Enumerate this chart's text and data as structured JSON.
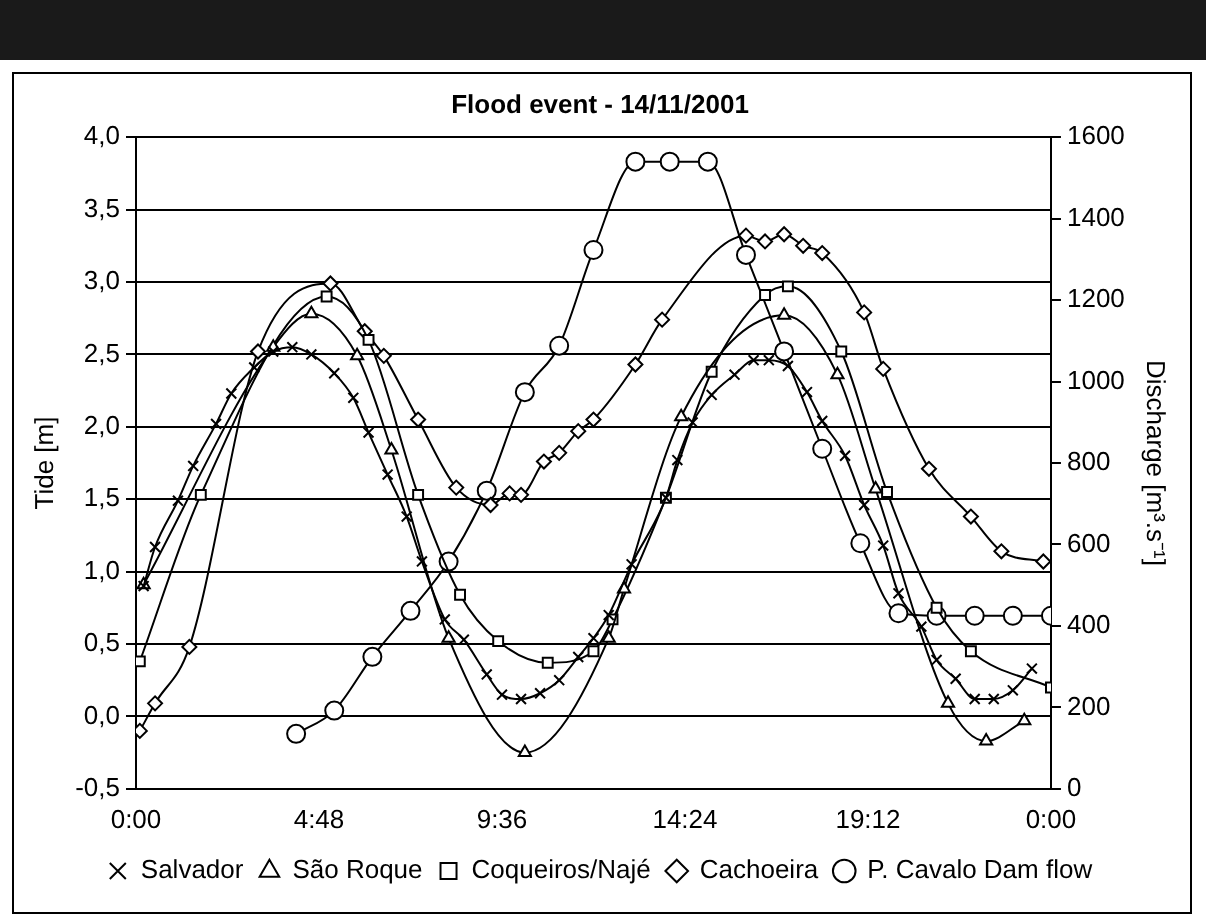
{
  "chart_data": {
    "type": "line",
    "title": "Flood event - 14/11/2001",
    "ylabel": "Tide [m]",
    "y2label": "Discharge [m³.s⁻¹]",
    "xlim": [
      0,
      24
    ],
    "xticks": [
      {
        "value": 0,
        "label": "0:00"
      },
      {
        "value": 4.8,
        "label": "4:48"
      },
      {
        "value": 9.6,
        "label": "9:36"
      },
      {
        "value": 14.4,
        "label": "14:24"
      },
      {
        "value": 19.2,
        "label": "19:12"
      },
      {
        "value": 24,
        "label": "0:00"
      }
    ],
    "ylim": [
      -0.5,
      4
    ],
    "yticks": [
      {
        "value": -0.5,
        "label": "-0,5"
      },
      {
        "value": 0,
        "label": "0,0"
      },
      {
        "value": 0.5,
        "label": "0,5"
      },
      {
        "value": 1,
        "label": "1,0"
      },
      {
        "value": 1.5,
        "label": "1,5"
      },
      {
        "value": 2,
        "label": "2,0"
      },
      {
        "value": 2.5,
        "label": "2,5"
      },
      {
        "value": 3,
        "label": "3,0"
      },
      {
        "value": 3.5,
        "label": "3,5"
      },
      {
        "value": 4,
        "label": "4,0"
      }
    ],
    "y2lim": [
      0,
      1600
    ],
    "y2ticks": [
      0,
      200,
      400,
      600,
      800,
      1000,
      1200,
      1400,
      1600
    ],
    "grid": "y",
    "legend": "bottom",
    "line_style": "solid",
    "series": [
      {
        "name": "Salvador",
        "color": "#000000",
        "marker": "cross",
        "x": [
          0.2,
          0.5,
          1.1,
          1.5,
          2.1,
          2.5,
          3.1,
          3.6,
          4.1,
          4.6,
          5.2,
          5.7,
          6.1,
          6.6,
          7.1,
          7.5,
          8.1,
          8.6,
          9.2,
          9.6,
          10.1,
          10.6,
          11.1,
          11.6,
          12,
          12.4,
          13,
          13.9,
          14.2,
          14.6,
          15.1,
          15.7,
          16.2,
          16.6,
          17.1,
          17.6,
          18,
          18.6,
          19.1,
          19.6,
          20,
          20.6,
          21,
          21.5,
          22,
          22.5,
          23,
          23.5
        ],
        "values": [
          0.9,
          1.17,
          1.49,
          1.73,
          2.02,
          2.23,
          2.41,
          2.52,
          2.55,
          2.5,
          2.37,
          2.2,
          1.96,
          1.67,
          1.38,
          1.07,
          0.67,
          0.53,
          0.29,
          0.15,
          0.12,
          0.16,
          0.25,
          0.41,
          0.54,
          0.7,
          1.05,
          1.51,
          1.77,
          2.03,
          2.22,
          2.36,
          2.46,
          2.46,
          2.42,
          2.24,
          2.04,
          1.8,
          1.46,
          1.18,
          0.85,
          0.62,
          0.39,
          0.26,
          0.12,
          0.12,
          0.18,
          0.33
        ]
      },
      {
        "name": "São Roque",
        "color": "#000000",
        "marker": "triangle",
        "x": [
          0.2,
          3.6,
          4.6,
          5.8,
          6.7,
          8.2,
          10.2,
          12.4,
          12.8,
          14.3,
          17,
          18.4,
          19.4,
          21.3,
          22.3,
          23.3
        ],
        "values": [
          0.91,
          2.55,
          2.78,
          2.49,
          1.84,
          0.54,
          -0.25,
          0.54,
          0.88,
          2.07,
          2.77,
          2.36,
          1.57,
          0.09,
          -0.17,
          -0.03
        ]
      },
      {
        "name": "Coqueiros/Najé",
        "color": "#000000",
        "marker": "square",
        "x": [
          0.1,
          1.7,
          5,
          6.1,
          7.4,
          8.5,
          9.5,
          10.8,
          12,
          12.5,
          13.9,
          15.1,
          16.5,
          17.1,
          18.5,
          19.7,
          21,
          21.9,
          24
        ],
        "values": [
          0.38,
          1.53,
          2.9,
          2.6,
          1.53,
          0.84,
          0.52,
          0.37,
          0.45,
          0.67,
          1.51,
          2.38,
          2.91,
          2.97,
          2.52,
          1.55,
          0.75,
          0.45,
          0.2
        ]
      },
      {
        "name": "Cachoeira",
        "color": "#000000",
        "marker": "diamond",
        "x": [
          0.1,
          0.5,
          1.4,
          3.2,
          5.1,
          6,
          6.5,
          7.4,
          8.4,
          9.3,
          9.8,
          10.1,
          10.7,
          11.1,
          11.6,
          12,
          13.1,
          13.8,
          16,
          16.5,
          17,
          17.5,
          18,
          19.1,
          19.6,
          20.8,
          21.9,
          22.7,
          23.8
        ],
        "values": [
          -0.1,
          0.09,
          0.48,
          2.52,
          2.99,
          2.66,
          2.49,
          2.05,
          1.58,
          1.46,
          1.54,
          1.53,
          1.76,
          1.82,
          1.97,
          2.05,
          2.43,
          2.74,
          3.32,
          3.28,
          3.33,
          3.25,
          3.2,
          2.79,
          2.4,
          1.71,
          1.38,
          1.14,
          1.07
        ]
      },
      {
        "name": "P. Cavalo Dam flow",
        "color": "#000000",
        "marker": "circle",
        "axis": "y2",
        "x": [
          4.2,
          5.2,
          6.2,
          7.2,
          8.2,
          9.2,
          10.2,
          11.1,
          12,
          13.1,
          14,
          15,
          16,
          17,
          18,
          19,
          20,
          21,
          22,
          23,
          24
        ],
        "values": [
          135,
          192,
          324,
          437,
          558,
          732,
          974,
          1088,
          1323,
          1540,
          1540,
          1540,
          1311,
          1074,
          835,
          603,
          431,
          425,
          425,
          425,
          425
        ]
      }
    ]
  }
}
